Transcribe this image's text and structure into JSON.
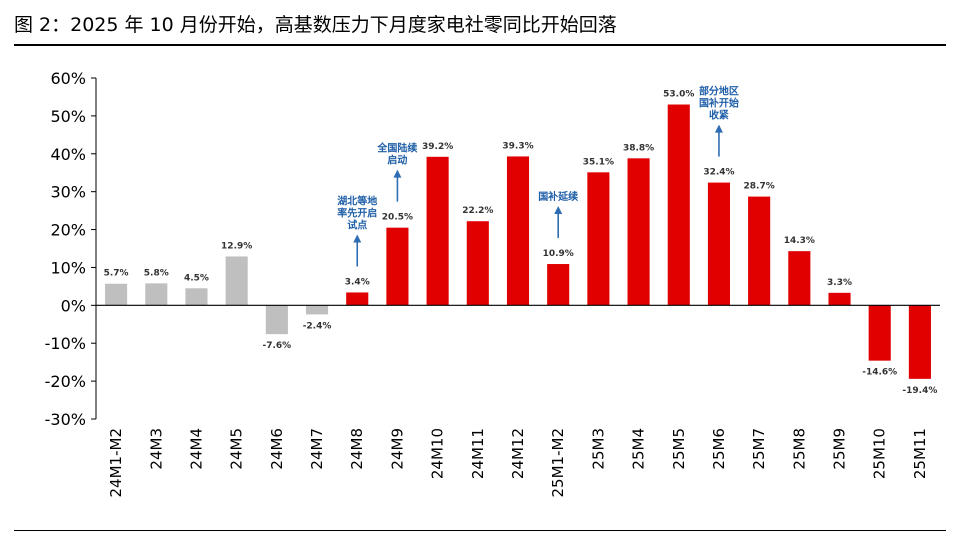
{
  "figure_title": "图 2：2025 年 10 月份开始，高基数压力下月度家电社零同比开始回落",
  "colors": {
    "gray": "#bfbfbf",
    "red": "#e00000",
    "arrow": "#2e6db4"
  },
  "chart_data": {
    "type": "bar",
    "title": "",
    "xlabel": "",
    "ylabel": "",
    "ylim": [
      -30,
      60
    ],
    "yticks": [
      "-30%",
      "-20%",
      "-10%",
      "0%",
      "10%",
      "20%",
      "30%",
      "40%",
      "50%",
      "60%"
    ],
    "ytick_values": [
      -30,
      -20,
      -10,
      0,
      10,
      20,
      30,
      40,
      50,
      60
    ],
    "categories": [
      "24M1-M2",
      "24M3",
      "24M4",
      "24M5",
      "24M6",
      "24M7",
      "24M8",
      "24M9",
      "24M10",
      "24M11",
      "24M12",
      "25M1-M2",
      "25M3",
      "25M4",
      "25M5",
      "25M6",
      "25M7",
      "25M8",
      "25M9",
      "25M10",
      "25M11"
    ],
    "values": [
      5.7,
      5.8,
      4.5,
      12.9,
      -7.6,
      -2.4,
      3.4,
      20.5,
      39.2,
      22.2,
      39.3,
      10.9,
      35.1,
      38.8,
      53.0,
      32.4,
      28.7,
      14.3,
      3.3,
      -14.6,
      -19.4
    ],
    "labels": [
      "5.7%",
      "5.8%",
      "4.5%",
      "12.9%",
      "-7.6%",
      "-2.4%",
      "3.4%",
      "20.5%",
      "39.2%",
      "22.2%",
      "39.3%",
      "10.9%",
      "35.1%",
      "38.8%",
      "53.0%",
      "32.4%",
      "28.7%",
      "14.3%",
      "3.3%",
      "-14.6%",
      "-19.4%"
    ],
    "bar_colors": [
      "gray",
      "gray",
      "gray",
      "gray",
      "gray",
      "gray",
      "red",
      "red",
      "red",
      "red",
      "red",
      "red",
      "red",
      "red",
      "red",
      "red",
      "red",
      "red",
      "red",
      "red",
      "red"
    ],
    "grid": false,
    "legend": "none",
    "annotations": [
      {
        "index": 6,
        "lines": [
          "湖北等地",
          "率先开启",
          "试点"
        ]
      },
      {
        "index": 7,
        "lines": [
          "全国陆续",
          "启动"
        ]
      },
      {
        "index": 11,
        "lines": [
          "国补延续"
        ]
      },
      {
        "index": 15,
        "lines": [
          "部分地区",
          "国补开始",
          "收紧"
        ]
      }
    ]
  }
}
